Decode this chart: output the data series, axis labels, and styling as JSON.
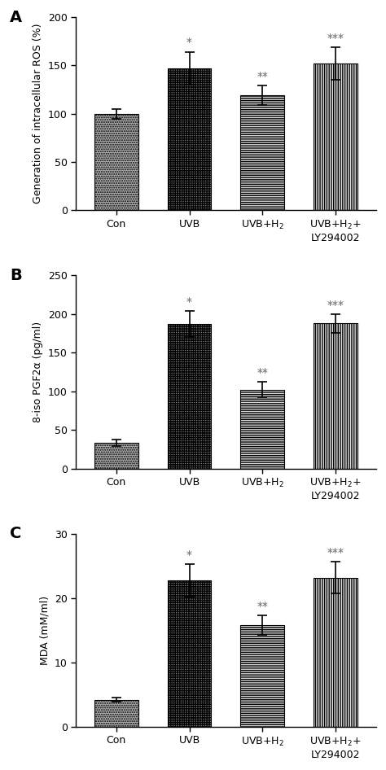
{
  "panels": [
    {
      "label": "A",
      "ylabel": "Generation of intracellular ROS (%)",
      "ylim": [
        0,
        200
      ],
      "yticks": [
        0,
        50,
        100,
        150,
        200
      ],
      "categories": [
        "Con",
        "UVB",
        "UVB+H$_2$",
        "UVB+H$_2$+\nLY294002"
      ],
      "values": [
        100,
        147,
        119,
        152
      ],
      "errors": [
        5,
        17,
        10,
        17
      ],
      "sig_labels": [
        "",
        "*",
        "**",
        "***"
      ]
    },
    {
      "label": "B",
      "ylabel": "8-iso PGF2α (pg/ml)",
      "ylim": [
        0,
        250
      ],
      "yticks": [
        0,
        50,
        100,
        150,
        200,
        250
      ],
      "categories": [
        "Con",
        "UVB",
        "UVB+H$_2$",
        "UVB+H$_2$+\nLY294002"
      ],
      "values": [
        33,
        187,
        102,
        188
      ],
      "errors": [
        4,
        17,
        10,
        12
      ],
      "sig_labels": [
        "",
        "*",
        "**",
        "***"
      ]
    },
    {
      "label": "C",
      "ylabel": "MDA (mM/ml)",
      "ylim": [
        0,
        30
      ],
      "yticks": [
        0,
        10,
        20,
        30
      ],
      "categories": [
        "Con",
        "UVB",
        "UVB+H$_2$",
        "UVB+H$_2$+\nLY294002"
      ],
      "values": [
        4.2,
        22.8,
        15.8,
        23.2
      ],
      "errors": [
        0.3,
        2.5,
        1.5,
        2.5
      ],
      "sig_labels": [
        "",
        "*",
        "**",
        "***"
      ]
    }
  ],
  "bar_patterns": [
    {
      "hatch": "......",
      "facecolor": "#b0b0b0",
      "edgecolor": "#000000"
    },
    {
      "hatch": "++++++",
      "facecolor": "#808080",
      "edgecolor": "#000000"
    },
    {
      "hatch": "------",
      "facecolor": "#d8d8d8",
      "edgecolor": "#000000"
    },
    {
      "hatch": "||||||",
      "facecolor": "#e8e8e8",
      "edgecolor": "#000000"
    }
  ],
  "sig_color": "#666666",
  "bar_width": 0.6,
  "figsize": [
    4.74,
    9.46
  ],
  "dpi": 100
}
